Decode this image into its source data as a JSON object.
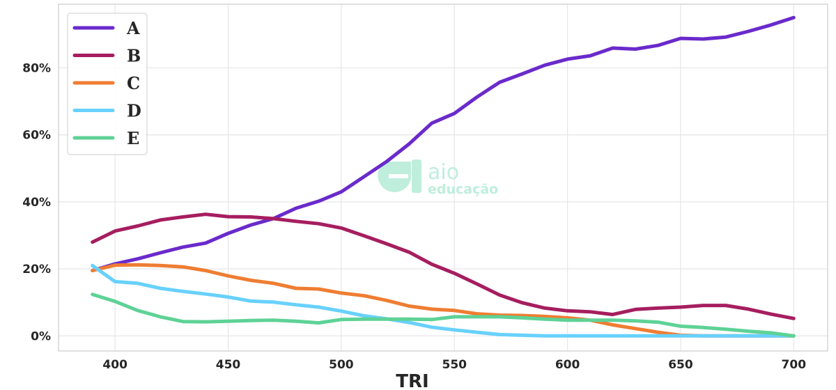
{
  "chart_data": {
    "type": "line",
    "title": "",
    "xlabel": "TRI",
    "ylabel": "",
    "x": [
      390,
      400,
      410,
      420,
      430,
      440,
      450,
      460,
      470,
      480,
      490,
      500,
      510,
      520,
      530,
      540,
      550,
      560,
      570,
      580,
      590,
      600,
      610,
      620,
      630,
      640,
      650,
      660,
      670,
      680,
      690,
      700
    ],
    "xlim": [
      375,
      715
    ],
    "ylim": [
      -4.5,
      99
    ],
    "xticks": [
      400,
      450,
      500,
      550,
      600,
      650,
      700
    ],
    "yticks": [
      0,
      20,
      40,
      60,
      80
    ],
    "ytick_format": "%",
    "grid": true,
    "legend_position": "top-left",
    "series": [
      {
        "name": "A",
        "color": "#6a2acb",
        "values": [
          19.5,
          21.5,
          23,
          24.8,
          26.5,
          27.7,
          30.6,
          33.1,
          35,
          38.1,
          40.2,
          43,
          47.5,
          52,
          57.3,
          63.5,
          66.4,
          71.3,
          75.7,
          78.2,
          80.8,
          82.6,
          83.6,
          85.9,
          85.6,
          86.7,
          88.8,
          88.6,
          89.2,
          90.9,
          92.8,
          95
        ]
      },
      {
        "name": "B",
        "color": "#a61e5f",
        "values": [
          28,
          31.3,
          32.8,
          34.6,
          35.5,
          36.3,
          35.6,
          35.5,
          35,
          34.2,
          33.5,
          32.2,
          29.9,
          27.5,
          25,
          21.4,
          18.7,
          15.5,
          12.2,
          9.9,
          8.3,
          7.5,
          7.2,
          6.4,
          7.9,
          8.3,
          8.6,
          9.1,
          9.1,
          8,
          6.5,
          5.2
        ]
      },
      {
        "name": "C",
        "color": "#ef7d32",
        "values": [
          19.5,
          21.1,
          21.2,
          21,
          20.6,
          19.5,
          17.9,
          16.6,
          15.7,
          14.2,
          14,
          12.8,
          12,
          10.6,
          8.9,
          8,
          7.6,
          6.6,
          6.2,
          6.1,
          5.8,
          5.4,
          4.7,
          3.3,
          2.2,
          1.1,
          0.2,
          0,
          0,
          0,
          0,
          0
        ]
      },
      {
        "name": "D",
        "color": "#68d1fc",
        "values": [
          21,
          16.2,
          15.7,
          14.2,
          13.3,
          12.5,
          11.6,
          10.4,
          10.1,
          9.3,
          8.6,
          7.4,
          6,
          5.1,
          4,
          2.6,
          1.8,
          1.1,
          0.4,
          0.2,
          0,
          0,
          0,
          0,
          0,
          0,
          0,
          0,
          0,
          0,
          0,
          0
        ]
      },
      {
        "name": "E",
        "color": "#5ed296",
        "values": [
          12.4,
          10.3,
          7.6,
          5.7,
          4.3,
          4.2,
          4.4,
          4.6,
          4.7,
          4.4,
          3.9,
          4.9,
          5,
          5,
          5,
          4.9,
          5.7,
          5.7,
          5.7,
          5.4,
          5,
          4.7,
          4.7,
          4.7,
          4.5,
          4.1,
          2.9,
          2.5,
          2,
          1.4,
          0.9,
          0
        ]
      }
    ]
  },
  "watermark": {
    "line1": "aio",
    "line2": "educação",
    "color": "#bfeedd"
  },
  "style": {
    "grid_color": "#e6e6e6",
    "axis_color": "#cccccc",
    "legend_border": "#cccccc"
  }
}
